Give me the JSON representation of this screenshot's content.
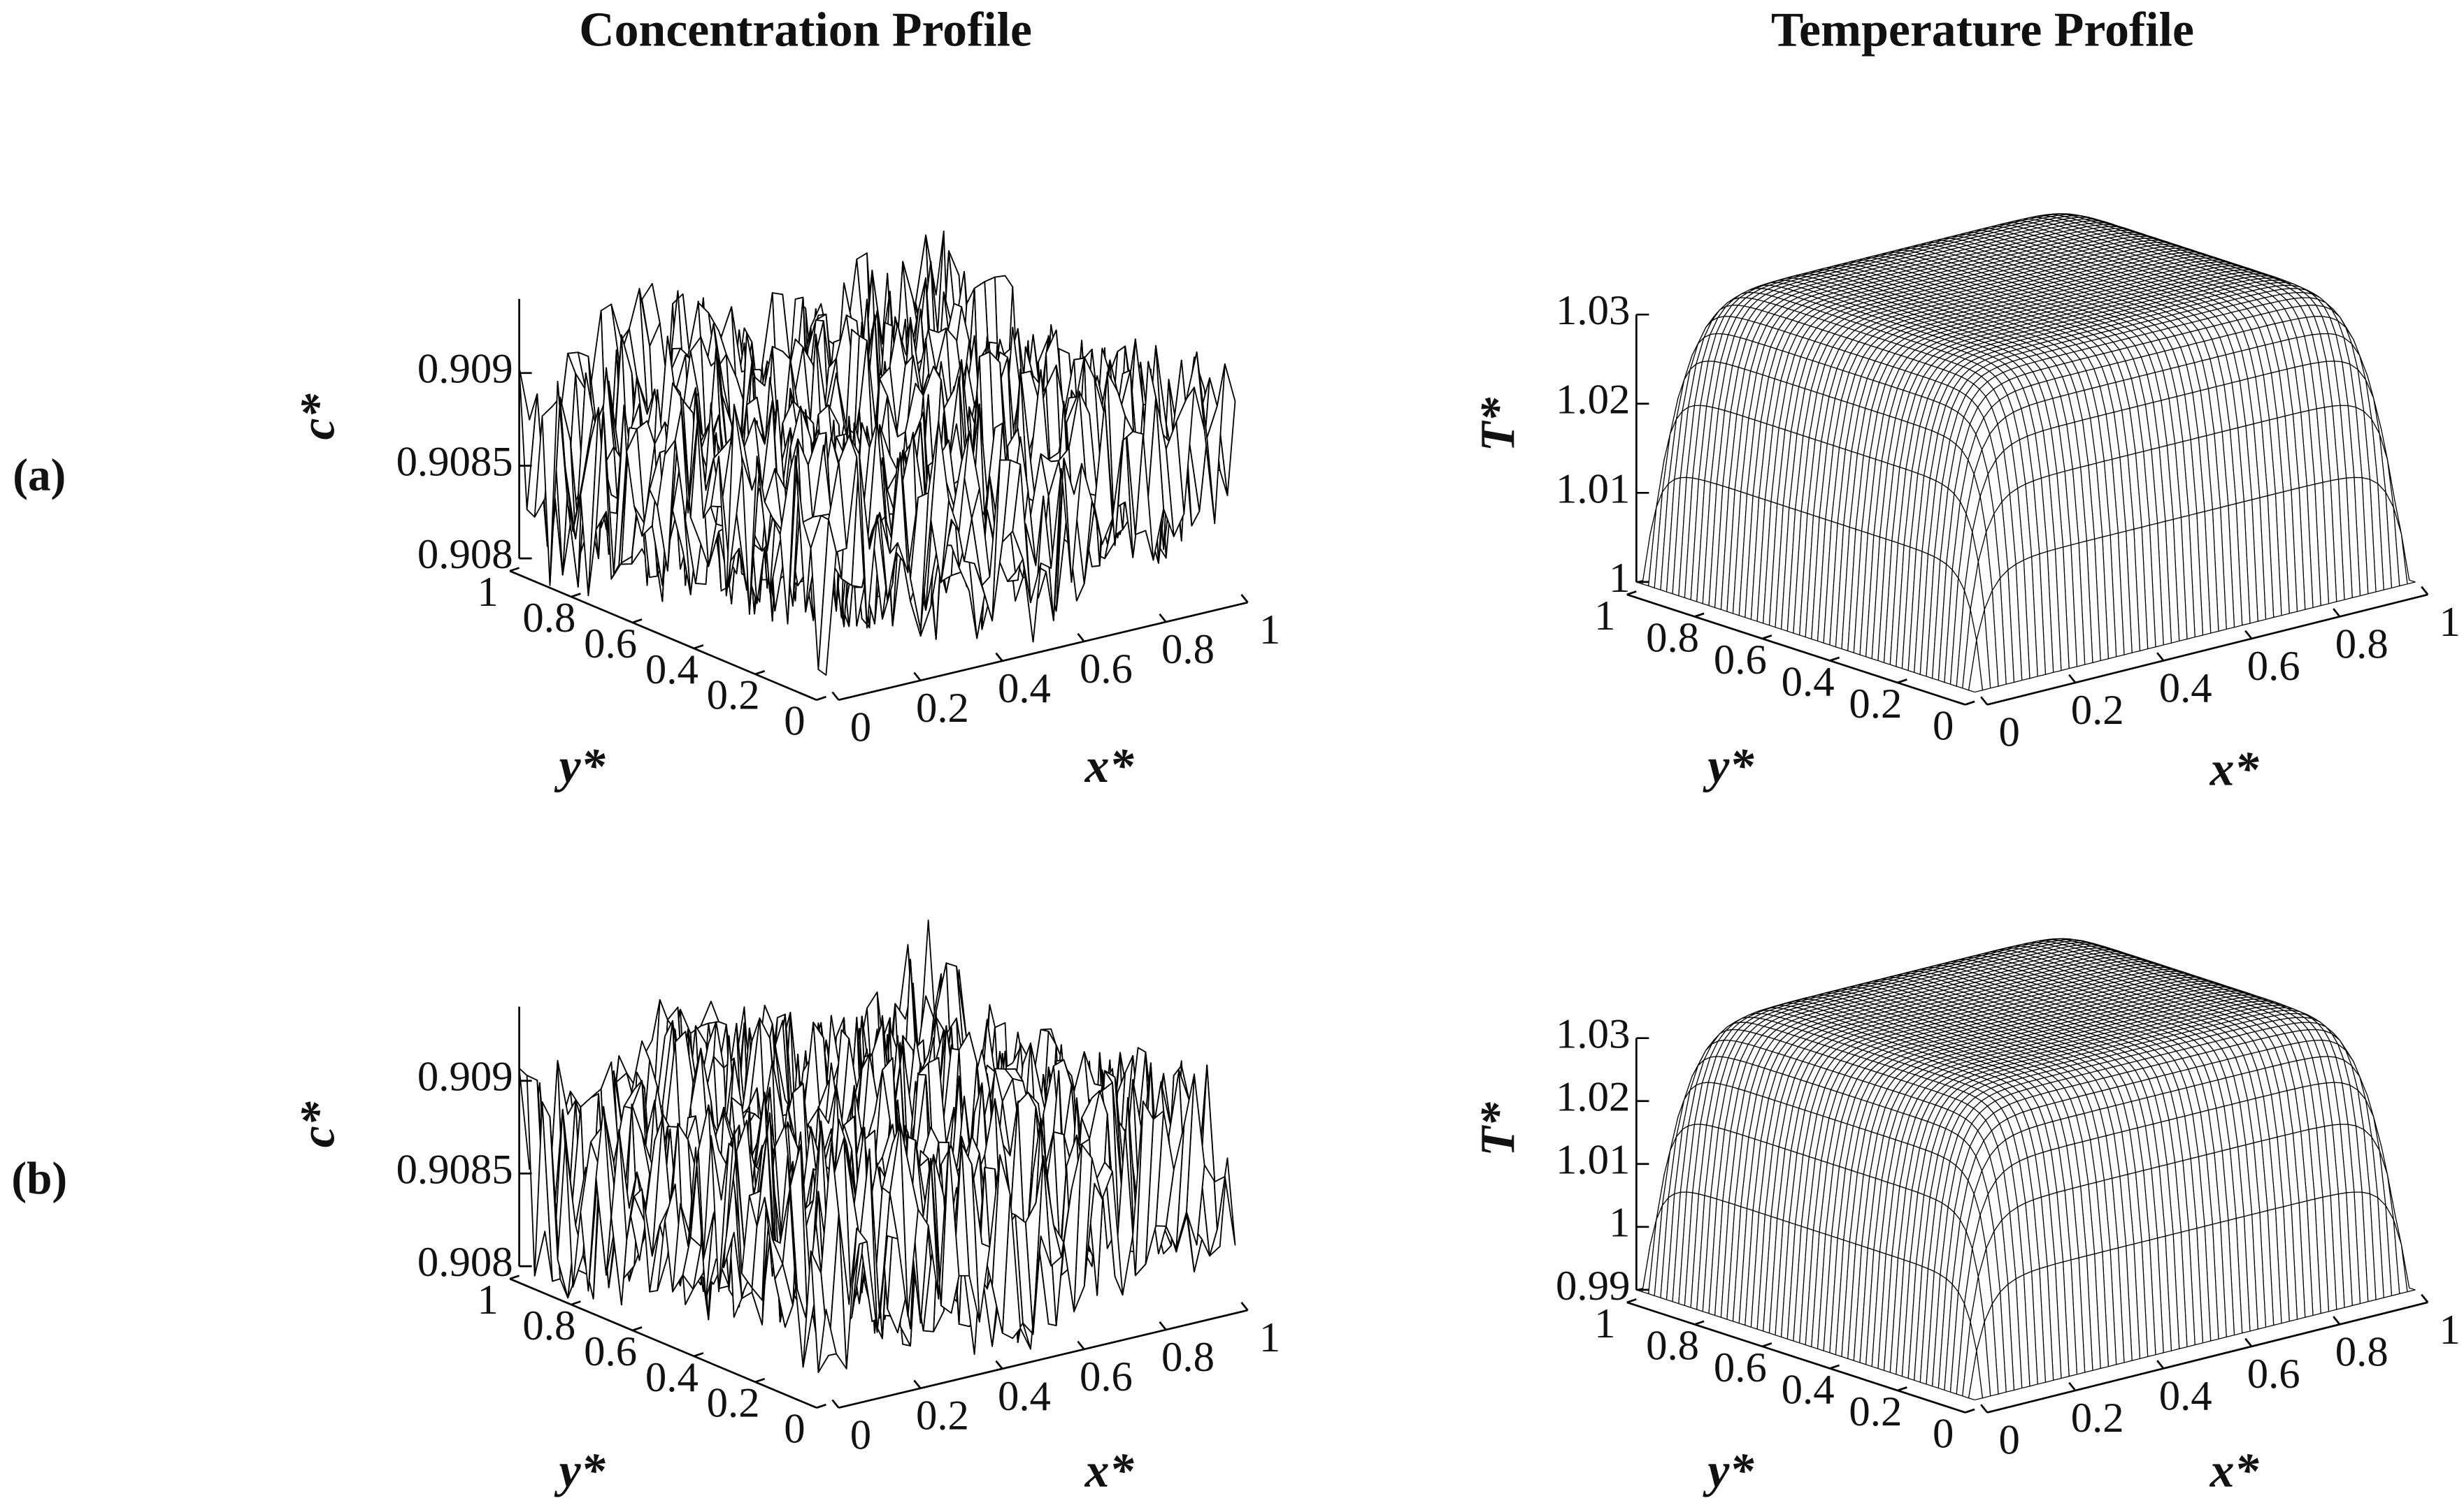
{
  "column_titles": [
    "Concentration Profile",
    "Temperature Profile"
  ],
  "row_labels": [
    "(a)",
    "(b)"
  ],
  "chart_data": [
    {
      "type": "surface",
      "color": "#000000",
      "xlabel": "x*",
      "ylabel": "y*",
      "zlabel": "c*",
      "xlim": [
        0,
        1
      ],
      "ylim": [
        0,
        1
      ],
      "zlim": [
        0.908,
        0.9094
      ],
      "xticks": [
        0,
        0.2,
        0.4,
        0.6,
        0.8,
        1
      ],
      "yticks": [
        0,
        0.2,
        0.4,
        0.6,
        0.8,
        1
      ],
      "zticks": [
        0.908,
        0.9085,
        0.909
      ]
    },
    {
      "type": "surface",
      "color": "#000000",
      "xlabel": "x*",
      "ylabel": "y*",
      "zlabel": "T*",
      "xlim": [
        0,
        1
      ],
      "ylim": [
        0,
        1
      ],
      "zlim": [
        1,
        1.03
      ],
      "xticks": [
        0,
        0.2,
        0.4,
        0.6,
        0.8,
        1
      ],
      "yticks": [
        0,
        0.2,
        0.4,
        0.6,
        0.8,
        1
      ],
      "zticks": [
        1,
        1.01,
        1.02,
        1.03
      ]
    },
    {
      "type": "surface",
      "color": "#000000",
      "xlabel": "x*",
      "ylabel": "y*",
      "zlabel": "c*",
      "xlim": [
        0,
        1
      ],
      "ylim": [
        0,
        1
      ],
      "zlim": [
        0.908,
        0.9094
      ],
      "xticks": [
        0,
        0.2,
        0.4,
        0.6,
        0.8,
        1
      ],
      "yticks": [
        0,
        0.2,
        0.4,
        0.6,
        0.8,
        1
      ],
      "zticks": [
        0.908,
        0.9085,
        0.909
      ]
    },
    {
      "type": "surface",
      "color": "#000000",
      "xlabel": "x*",
      "ylabel": "y*",
      "zlabel": "T*",
      "xlim": [
        0,
        1
      ],
      "ylim": [
        0,
        1
      ],
      "zlim": [
        0.99,
        1.03
      ],
      "xticks": [
        0,
        0.2,
        0.4,
        0.6,
        0.8,
        1
      ],
      "yticks": [
        0,
        0.2,
        0.4,
        0.6,
        0.8,
        1
      ],
      "zticks": [
        0.99,
        1,
        1.01,
        1.02,
        1.03
      ]
    }
  ]
}
